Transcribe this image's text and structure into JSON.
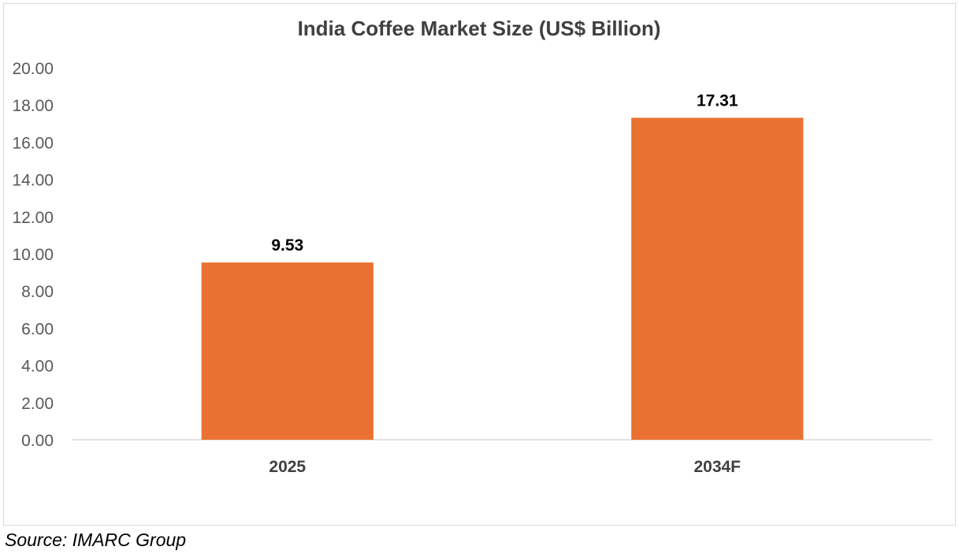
{
  "chart_data": {
    "type": "bar",
    "title": "India Coffee Market Size (US$ Billion)",
    "categories": [
      "2025",
      "2034F"
    ],
    "values": [
      9.53,
      17.31
    ],
    "value_labels": [
      "9.53",
      "17.31"
    ],
    "ylim": [
      0,
      20
    ],
    "y_ticks": [
      "0.00",
      "2.00",
      "4.00",
      "6.00",
      "8.00",
      "10.00",
      "12.00",
      "14.00",
      "16.00",
      "18.00",
      "20.00"
    ],
    "xlabel": "",
    "ylabel": "",
    "grid": false,
    "legend": "none",
    "bar_color": "#E97132"
  },
  "source": "Source: IMARC Group"
}
